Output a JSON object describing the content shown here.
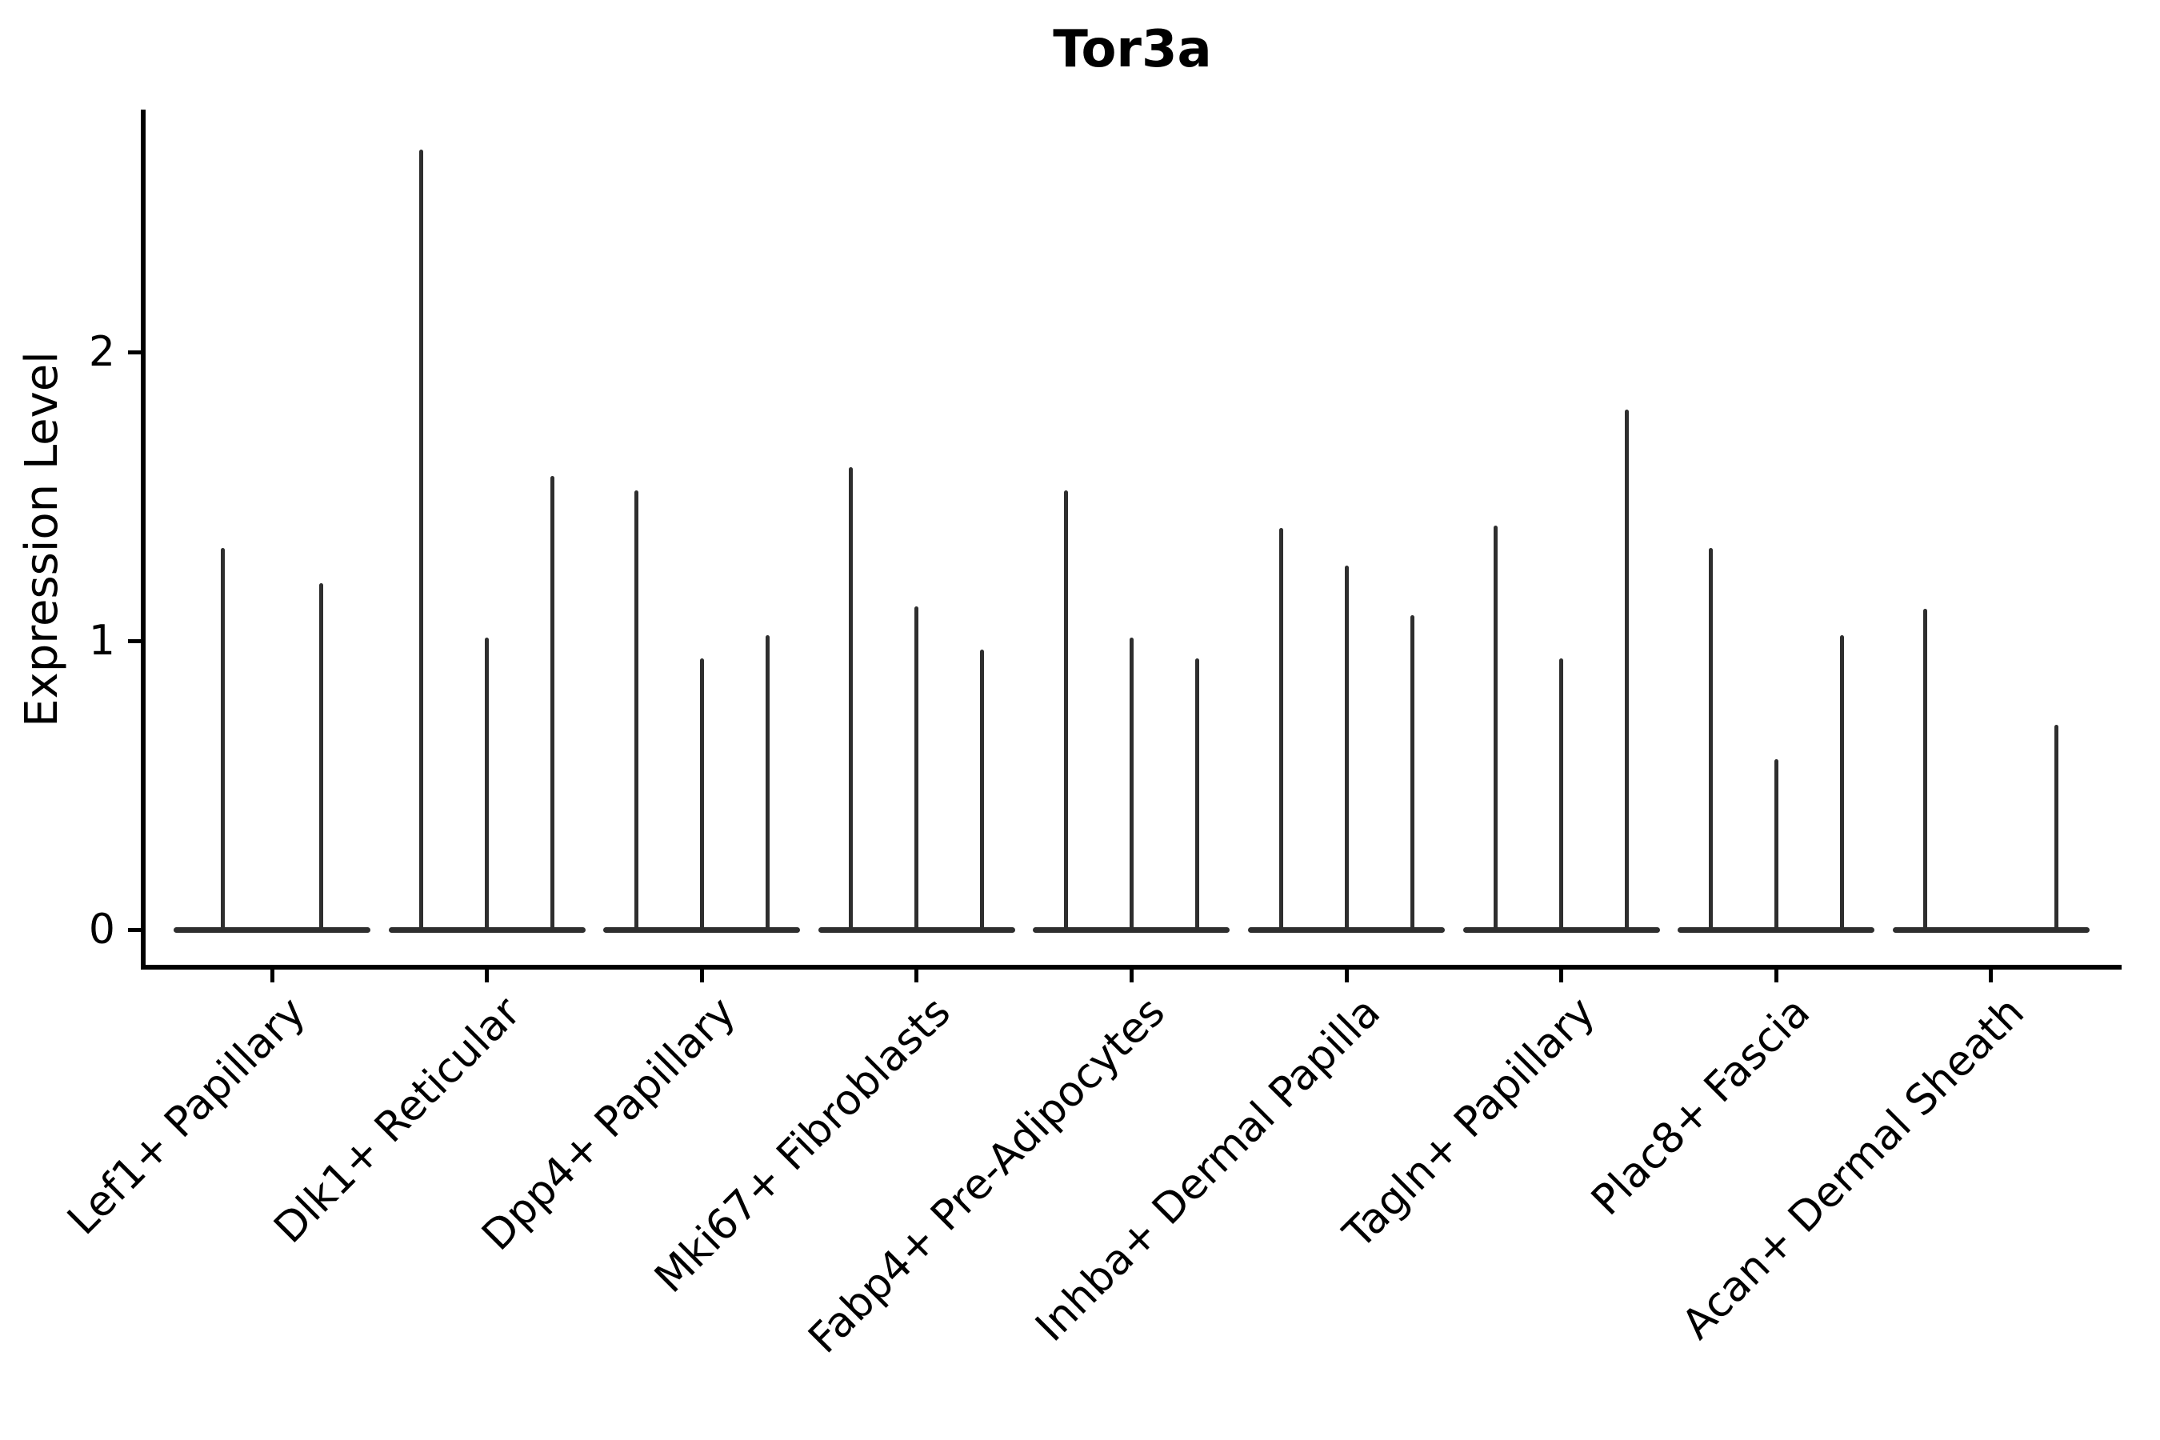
{
  "chart_data": {
    "type": "violin",
    "title": "Tor3a",
    "ylabel": "Expression Level",
    "xlabel": "",
    "ylim": [
      -0.14,
      2.84
    ],
    "yticks": [
      "0",
      "1",
      "2"
    ],
    "ytick_values": [
      0,
      1,
      2
    ],
    "grid": false,
    "legend": "none",
    "categories": [
      "Lef1+ Papillary",
      "Dlk1+ Reticular",
      "Dpp4+ Papillary",
      "Mki67+ Fibroblasts",
      "Fabp4+ Pre-Adipocytes",
      "Inhba+ Dermal Papilla",
      "Tagln+ Papillary",
      "Plac8+ Fascia",
      "Acan+ Dermal Sheath"
    ],
    "groups": [
      {
        "label": "Lef1+ Papillary",
        "slots": 2,
        "violins": [
          {
            "slot": 0,
            "max": 1.32
          },
          {
            "slot": 1,
            "max": 1.2
          }
        ]
      },
      {
        "label": "Dlk1+ Reticular",
        "slots": 3,
        "violins": [
          {
            "slot": 0,
            "max": 2.7
          },
          {
            "slot": 1,
            "max": 1.01
          },
          {
            "slot": 2,
            "max": 1.57
          }
        ]
      },
      {
        "label": "Dpp4+ Papillary",
        "slots": 3,
        "violins": [
          {
            "slot": 0,
            "max": 1.52
          },
          {
            "slot": 1,
            "max": 0.94
          },
          {
            "slot": 2,
            "max": 1.02
          }
        ]
      },
      {
        "label": "Mki67+ Fibroblasts",
        "slots": 3,
        "violins": [
          {
            "slot": 0,
            "max": 1.6
          },
          {
            "slot": 1,
            "max": 1.12
          },
          {
            "slot": 2,
            "max": 0.97
          }
        ]
      },
      {
        "label": "Fabp4+ Pre-Adipocytes",
        "slots": 3,
        "violins": [
          {
            "slot": 0,
            "max": 1.52
          },
          {
            "slot": 1,
            "max": 1.01
          },
          {
            "slot": 2,
            "max": 0.94
          }
        ]
      },
      {
        "label": "Inhba+ Dermal Papilla",
        "slots": 3,
        "violins": [
          {
            "slot": 0,
            "max": 1.39
          },
          {
            "slot": 1,
            "max": 1.26
          },
          {
            "slot": 2,
            "max": 1.09
          }
        ]
      },
      {
        "label": "Tagln+ Papillary",
        "slots": 3,
        "violins": [
          {
            "slot": 0,
            "max": 1.4
          },
          {
            "slot": 1,
            "max": 0.94
          },
          {
            "slot": 2,
            "max": 1.8
          }
        ]
      },
      {
        "label": "Plac8+ Fascia",
        "slots": 3,
        "violins": [
          {
            "slot": 0,
            "max": 1.32
          },
          {
            "slot": 1,
            "max": 0.59
          },
          {
            "slot": 2,
            "max": 1.02
          }
        ]
      },
      {
        "label": "Acan+ Dermal Sheath",
        "slots": 3,
        "violins": [
          {
            "slot": 0,
            "max": 1.11
          },
          {
            "slot": 2,
            "max": 0.71
          }
        ]
      }
    ],
    "colors": {
      "violin": "#2e2e2e",
      "axis": "#000000",
      "text": "#000000",
      "background": "#ffffff"
    }
  }
}
